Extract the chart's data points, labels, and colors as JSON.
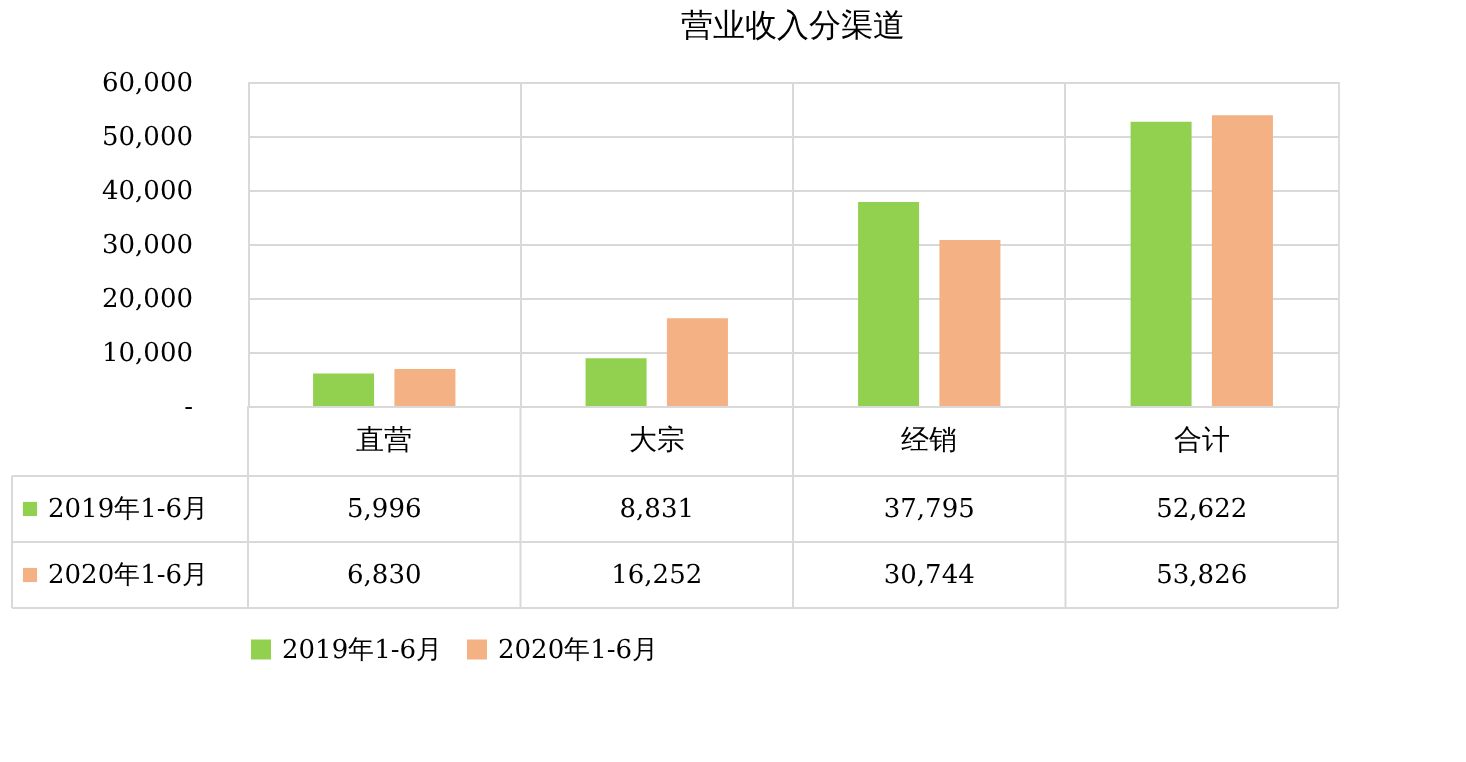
{
  "chart_data": {
    "type": "bar",
    "title": "营业收入分渠道",
    "categories": [
      "直营",
      "大宗",
      "经销",
      "合计"
    ],
    "series": [
      {
        "name": "2019年1-6月",
        "color": "#92d050",
        "values": [
          5996,
          8831,
          37795,
          52622
        ],
        "value_labels": [
          "5,996",
          "8,831",
          "37,795",
          "52,622"
        ]
      },
      {
        "name": "2020年1-6月",
        "color": "#f4b183",
        "values": [
          6830,
          16252,
          30744,
          53826
        ],
        "value_labels": [
          "6,830",
          "16,252",
          "30,744",
          "53,826"
        ]
      }
    ],
    "ylim": [
      0,
      60000
    ],
    "yticks": [
      {
        "value": 0,
        "label": "-"
      },
      {
        "value": 10000,
        "label": "10,000"
      },
      {
        "value": 20000,
        "label": "20,000"
      },
      {
        "value": 30000,
        "label": "30,000"
      },
      {
        "value": 40000,
        "label": "40,000"
      },
      {
        "value": 50000,
        "label": "50,000"
      },
      {
        "value": 60000,
        "label": "60,000"
      }
    ],
    "grid": "y",
    "legend": "bottom"
  }
}
